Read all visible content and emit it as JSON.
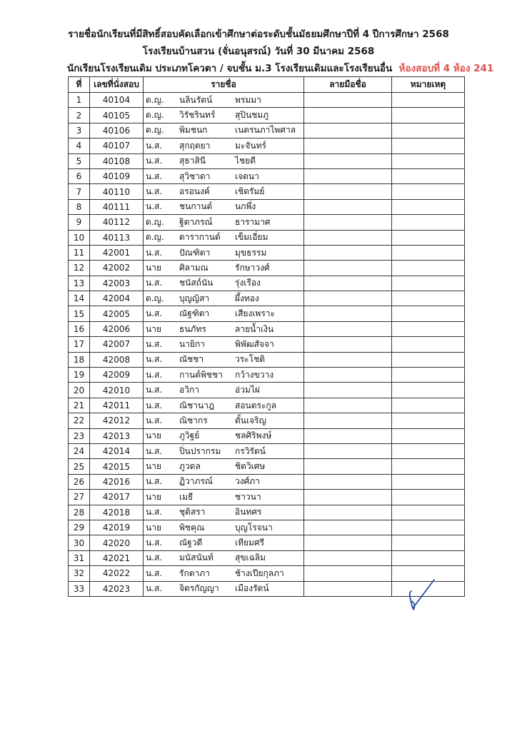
{
  "header": {
    "line1": "รายชื่อนักเรียนที่มีสิทธิ์สอบคัดเลือกเข้าศึกษาต่อระดับชั้นมัธยมศึกษาปีที่ 4 ปีการศึกษา  2568",
    "line2": "โรงเรียนบ้านสวน (จั่นอนุสรณ์)  วันที่ 30 มีนาคม 2568",
    "line3": "นักเรียนโรงเรียนเดิม ประเภทโควตา / จบชั้น ม.3 โรงเรียนเดิมและโรงเรียนอื่น",
    "room": "ห้องสอบที่ 4  ห้อง 241",
    "room_color": "#d9534f"
  },
  "table": {
    "columns": [
      "ที่",
      "เลขที่นั่งสอบ",
      "รายชื่อ",
      "ลายมือชื่อ",
      "หมายเหตุ"
    ],
    "rows": [
      [
        "1",
        "40104",
        "ด.ญ.",
        "นลินรัตน์",
        "พรมมา"
      ],
      [
        "2",
        "40105",
        "ด.ญ.",
        "วิรัชรินทร์",
        "สุปินชมภู"
      ],
      [
        "3",
        "40106",
        "ด.ญ.",
        "พิมชนก",
        "เนตรนภาไพศาล"
      ],
      [
        "4",
        "40107",
        "น.ส.",
        "สุกฤตยา",
        "มะจันทร์"
      ],
      [
        "5",
        "40108",
        "น.ส.",
        "สุธาสินี",
        "ไชยดี"
      ],
      [
        "6",
        "40109",
        "น.ส.",
        "สุวิชาดา",
        "เจตนา"
      ],
      [
        "7",
        "40110",
        "น.ส.",
        "อรอนงค์",
        "เชิดรัมย์"
      ],
      [
        "8",
        "40111",
        "น.ส.",
        "ชนกานต์",
        "นกพึ่ง"
      ],
      [
        "9",
        "40112",
        "ด.ญ.",
        "ฐิตาภรณ์",
        "ธารามาศ"
      ],
      [
        "10",
        "40113",
        "ด.ญ.",
        "ดารากานต์",
        "เข็มเอี่ยม"
      ],
      [
        "11",
        "42001",
        "น.ส.",
        "ปัณฑิตา",
        "มุขธรรม"
      ],
      [
        "12",
        "42002",
        "นาย",
        "ศิลามณ",
        "รักษาวงศ์"
      ],
      [
        "13",
        "42003",
        "น.ส.",
        "ชนัสถ์นัน",
        "รุ่งเรือง"
      ],
      [
        "14",
        "42004",
        "ด.ญ.",
        "บุญญิสา",
        "ผึ้งทอง"
      ],
      [
        "15",
        "42005",
        "น.ส.",
        "ณัฐฑิตา",
        "เสียงเพราะ"
      ],
      [
        "16",
        "42006",
        "นาย",
        "ธนภัทร",
        "ลายน้ำเงิน"
      ],
      [
        "17",
        "42007",
        "น.ส.",
        "นายิกา",
        "พิพัฒสัจจา"
      ],
      [
        "18",
        "42008",
        "น.ส.",
        "ณัชชา",
        "วระโชติ"
      ],
      [
        "19",
        "42009",
        "น.ส.",
        "กานต์พิชชา",
        "กว้างขวาง"
      ],
      [
        "20",
        "42010",
        "น.ส.",
        "อวิกา",
        "อ่วมไผ่"
      ],
      [
        "21",
        "42011",
        "น.ส.",
        "ณิชานาฎ",
        "สอนตระกูล"
      ],
      [
        "22",
        "42012",
        "น.ส.",
        "ณิชากร",
        "ตั้นเจริญ"
      ],
      [
        "23",
        "42013",
        "นาย",
        "ภูวิฐย์",
        "ชลศิริพงษ์"
      ],
      [
        "24",
        "42014",
        "น.ส.",
        "ปิ่นปรากรม",
        "กรวิรัตน์"
      ],
      [
        "25",
        "42015",
        "นาย",
        "ภูวดล",
        "ชิตวิเศษ"
      ],
      [
        "26",
        "42016",
        "น.ส.",
        "ฏิวาภรณ์",
        "วงศ์ภา"
      ],
      [
        "27",
        "42017",
        "นาย",
        "เมธี",
        "ชาวนา"
      ],
      [
        "28",
        "42018",
        "น.ส.",
        "ชุติสรา",
        "อินทศร"
      ],
      [
        "29",
        "42019",
        "นาย",
        "พิชคุณ",
        "บุญโรจนา"
      ],
      [
        "30",
        "42020",
        "น.ส.",
        "ณัฐวดี",
        "เทียมศรี"
      ],
      [
        "31",
        "42021",
        "น.ส.",
        "มนัสนันท์",
        "สุขเฉลิม"
      ],
      [
        "32",
        "42022",
        "น.ส.",
        "รักตาภา",
        "ช้างเปียกุลภา"
      ],
      [
        "33",
        "42023",
        "น.ส.",
        "จิตรกัญญา",
        "เมืองรัตน์"
      ]
    ]
  },
  "signature_color": "#2a4aa0"
}
